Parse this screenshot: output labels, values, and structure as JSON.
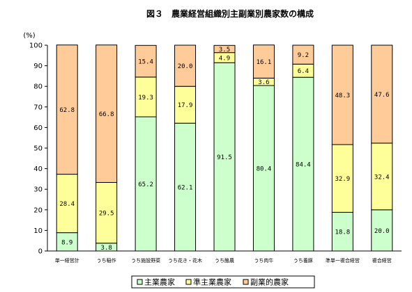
{
  "chart_data": {
    "type": "bar",
    "stacked": true,
    "title": "図３　農業経営組織別主副業別農家数の構成",
    "ylabel": "(%)",
    "ylim": [
      0,
      100
    ],
    "yticks": [
      0,
      10,
      20,
      30,
      40,
      50,
      60,
      70,
      80,
      90,
      100
    ],
    "grid": false,
    "legend_position": "bottom",
    "categories": [
      "単一経営計",
      "うち稲作",
      "うち施設野菜",
      "うち花き・花木",
      "うち酪農",
      "うち肉牛",
      "うち養豚",
      "準単一複合経営",
      "複合経営"
    ],
    "series": [
      {
        "name": "主業農家",
        "color": "#ccffcc",
        "values": [
          8.9,
          3.8,
          65.2,
          62.1,
          91.5,
          80.4,
          84.4,
          18.8,
          20.0
        ],
        "labels": [
          "8.9",
          "3.8",
          "65.2",
          "62.1",
          "91.5",
          "80.4",
          "84.4",
          "18.8",
          "20.0"
        ]
      },
      {
        "name": "準主業農家",
        "color": "#ffff99",
        "values": [
          28.4,
          29.5,
          19.3,
          17.9,
          4.9,
          3.6,
          6.4,
          32.9,
          32.4
        ],
        "labels": [
          "28.4",
          "29.5",
          "19.3",
          "17.9",
          "4.9",
          "3.6",
          "6.4",
          "32.9",
          "32.4"
        ]
      },
      {
        "name": "副業的農家",
        "color": "#ffcc99",
        "values": [
          62.8,
          66.8,
          15.4,
          20.0,
          3.5,
          16.1,
          9.2,
          48.3,
          47.6
        ],
        "labels": [
          "62.8",
          "66.8",
          "15.4",
          "20.0",
          "3.5",
          "16.1",
          "9.2",
          "48.3",
          "47.6"
        ]
      }
    ]
  }
}
